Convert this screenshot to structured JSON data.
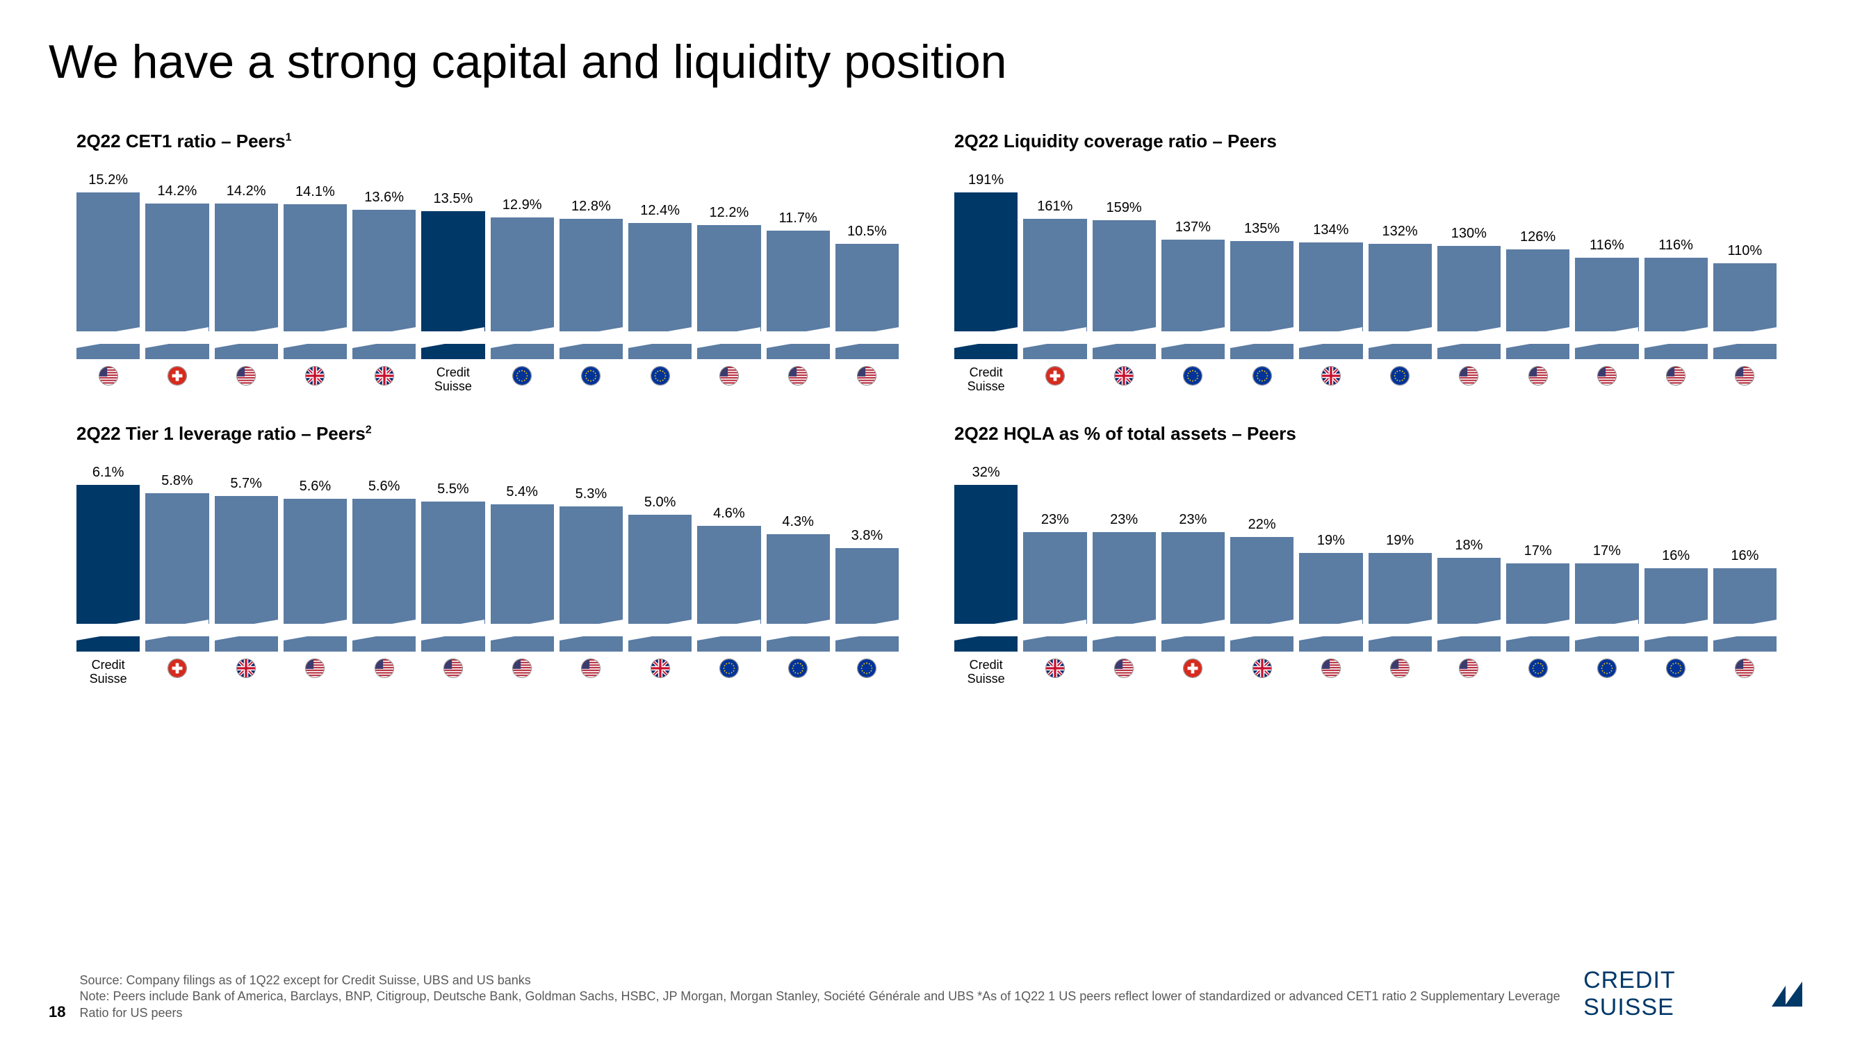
{
  "title": "We have a strong capital and liquidity position",
  "page_number": "18",
  "colors": {
    "peer_bar": "#5b7ca3",
    "cs_bar": "#003868",
    "bg": "#ffffff"
  },
  "flags": {
    "us": {
      "stripes": "#b22234",
      "canton": "#3c3b6e",
      "white": "#ffffff"
    },
    "ch": {
      "bg": "#d52b1e",
      "cross": "#ffffff"
    },
    "uk": {
      "bg": "#012169",
      "cross": "#ffffff",
      "diag": "#c8102e"
    },
    "eu": {
      "bg": "#003399",
      "star": "#ffcc00"
    }
  },
  "charts": [
    {
      "title": "2Q22 CET1 ratio – Peers",
      "sup": "1",
      "max_value": 15.2,
      "bar_bottom_height": 22,
      "unit": "%",
      "bars": [
        {
          "value": 15.2,
          "label": "15.2%",
          "flag": "us",
          "asterisk": false,
          "cs": false
        },
        {
          "value": 14.2,
          "label": "14.2%",
          "flag": "ch",
          "asterisk": false,
          "cs": false
        },
        {
          "value": 14.2,
          "label": "14.2%",
          "flag": "us",
          "asterisk": false,
          "cs": false
        },
        {
          "value": 14.1,
          "label": "14.1%",
          "flag": "uk",
          "asterisk": true,
          "cs": false
        },
        {
          "value": 13.6,
          "label": "13.6%",
          "flag": "uk",
          "asterisk": true,
          "cs": false
        },
        {
          "value": 13.5,
          "label": "13.5%",
          "text": "Credit Suisse",
          "cs": true
        },
        {
          "value": 12.9,
          "label": "12.9%",
          "flag": "eu",
          "asterisk": true,
          "cs": false
        },
        {
          "value": 12.8,
          "label": "12.8%",
          "flag": "eu",
          "asterisk": true,
          "cs": false
        },
        {
          "value": 12.4,
          "label": "12.4%",
          "flag": "eu",
          "asterisk": true,
          "cs": false
        },
        {
          "value": 12.2,
          "label": "12.2%",
          "flag": "us",
          "asterisk": false,
          "cs": false
        },
        {
          "value": 11.7,
          "label": "11.7%",
          "flag": "us",
          "asterisk": false,
          "cs": false
        },
        {
          "value": 10.5,
          "label": "10.5%",
          "flag": "us",
          "asterisk": false,
          "cs": false
        }
      ]
    },
    {
      "title": "2Q22 Liquidity coverage ratio – Peers",
      "sup": "",
      "max_value": 191,
      "bar_bottom_height": 22,
      "unit": "%",
      "bars": [
        {
          "value": 191,
          "label": "191%",
          "text": "Credit Suisse",
          "cs": true
        },
        {
          "value": 161,
          "label": "161%",
          "flag": "ch",
          "asterisk": false,
          "cs": false
        },
        {
          "value": 159,
          "label": "159%",
          "flag": "uk",
          "asterisk": true,
          "cs": false
        },
        {
          "value": 137,
          "label": "137%",
          "flag": "eu",
          "asterisk": true,
          "cs": false
        },
        {
          "value": 135,
          "label": "135%",
          "flag": "eu",
          "asterisk": true,
          "cs": false
        },
        {
          "value": 134,
          "label": "134%",
          "flag": "uk",
          "asterisk": true,
          "cs": false
        },
        {
          "value": 132,
          "label": "132%",
          "flag": "eu",
          "asterisk": true,
          "cs": false
        },
        {
          "value": 130,
          "label": "130%",
          "flag": "us",
          "asterisk": true,
          "cs": false
        },
        {
          "value": 126,
          "label": "126%",
          "flag": "us",
          "asterisk": true,
          "cs": false
        },
        {
          "value": 116,
          "label": "116%",
          "flag": "us",
          "asterisk": true,
          "cs": false
        },
        {
          "value": 116,
          "label": "116%",
          "flag": "us",
          "asterisk": true,
          "cs": false
        },
        {
          "value": 110,
          "label": "110%",
          "flag": "us",
          "asterisk": true,
          "cs": false
        }
      ]
    },
    {
      "title": "2Q22 Tier 1 leverage ratio – Peers",
      "sup": "2",
      "max_value": 6.1,
      "bar_bottom_height": 22,
      "unit": "%",
      "bars": [
        {
          "value": 6.1,
          "label": "6.1%",
          "text": "Credit Suisse",
          "cs": true
        },
        {
          "value": 5.8,
          "label": "5.8%",
          "flag": "ch",
          "asterisk": false,
          "cs": false
        },
        {
          "value": 5.7,
          "label": "5.7%",
          "flag": "uk",
          "asterisk": true,
          "cs": false
        },
        {
          "value": 5.6,
          "label": "5.6%",
          "flag": "us",
          "asterisk": false,
          "cs": false
        },
        {
          "value": 5.6,
          "label": "5.6%",
          "flag": "us",
          "asterisk": false,
          "cs": false
        },
        {
          "value": 5.5,
          "label": "5.5%",
          "flag": "us",
          "asterisk": false,
          "cs": false
        },
        {
          "value": 5.4,
          "label": "5.4%",
          "flag": "us",
          "asterisk": false,
          "cs": false
        },
        {
          "value": 5.3,
          "label": "5.3%",
          "flag": "us",
          "asterisk": false,
          "cs": false
        },
        {
          "value": 5.0,
          "label": "5.0%",
          "flag": "uk",
          "asterisk": true,
          "cs": false
        },
        {
          "value": 4.6,
          "label": "4.6%",
          "flag": "eu",
          "asterisk": true,
          "cs": false
        },
        {
          "value": 4.3,
          "label": "4.3%",
          "flag": "eu",
          "asterisk": true,
          "cs": false
        },
        {
          "value": 3.8,
          "label": "3.8%",
          "flag": "eu",
          "asterisk": true,
          "cs": false
        }
      ]
    },
    {
      "title": "2Q22 HQLA as % of total assets – Peers",
      "sup": "",
      "max_value": 32,
      "bar_bottom_height": 22,
      "unit": "%",
      "bars": [
        {
          "value": 32,
          "label": "32%",
          "text": "Credit Suisse",
          "cs": true
        },
        {
          "value": 23,
          "label": "23%",
          "flag": "uk",
          "asterisk": true,
          "cs": false
        },
        {
          "value": 23,
          "label": "23%",
          "flag": "us",
          "asterisk": true,
          "cs": false
        },
        {
          "value": 23,
          "label": "23%",
          "flag": "ch",
          "asterisk": false,
          "cs": false
        },
        {
          "value": 22,
          "label": "22%",
          "flag": "uk",
          "asterisk": true,
          "cs": false
        },
        {
          "value": 19,
          "label": "19%",
          "flag": "us",
          "asterisk": true,
          "cs": false
        },
        {
          "value": 19,
          "label": "19%",
          "flag": "us",
          "asterisk": true,
          "cs": false
        },
        {
          "value": 18,
          "label": "18%",
          "flag": "us",
          "asterisk": true,
          "cs": false
        },
        {
          "value": 17,
          "label": "17%",
          "flag": "eu",
          "asterisk": true,
          "cs": false
        },
        {
          "value": 17,
          "label": "17%",
          "flag": "eu",
          "asterisk": true,
          "cs": false
        },
        {
          "value": 16,
          "label": "16%",
          "flag": "eu",
          "asterisk": true,
          "cs": false
        },
        {
          "value": 16,
          "label": "16%",
          "flag": "us",
          "asterisk": true,
          "cs": false
        }
      ]
    }
  ],
  "footer": {
    "source": "Source: Company filings as of 1Q22 except for Credit Suisse, UBS and US banks",
    "note": "Note: Peers include Bank of America, Barclays, BNP, Citigroup, Deutsche Bank, Goldman Sachs, HSBC, JP Morgan, Morgan Stanley, Société Générale and UBS    *As of 1Q22    1 US peers reflect lower of standardized or advanced CET1 ratio    2 Supplementary Leverage Ratio for US peers"
  },
  "logo_text": "CREDIT SUISSE"
}
